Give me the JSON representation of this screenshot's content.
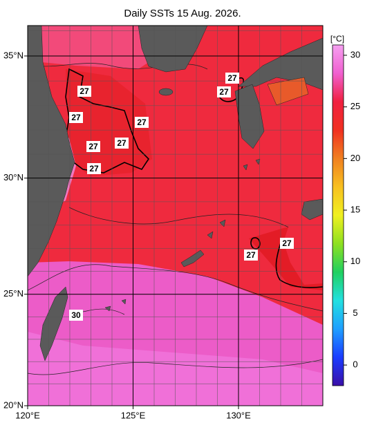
{
  "title": "Daily SSTs 15 Aug. 2026.",
  "map": {
    "xlim": [
      120,
      134
    ],
    "ylim": [
      20,
      36.2
    ],
    "xticks": [
      {
        "value": 120,
        "label": "120°E"
      },
      {
        "value": 125,
        "label": "125°E"
      },
      {
        "value": 130,
        "label": "130°E"
      }
    ],
    "yticks": [
      {
        "value": 20,
        "label": "20°N"
      },
      {
        "value": 25,
        "label": "25°N"
      },
      {
        "value": 30,
        "label": "30°N"
      },
      {
        "value": 35,
        "label": "35°N"
      }
    ],
    "contour_labels": [
      27,
      27,
      27,
      27,
      27,
      27,
      27,
      27,
      27,
      27,
      30
    ]
  },
  "colorbar": {
    "unit": "[°C]",
    "lim": [
      -2,
      31
    ],
    "ticks": [
      0,
      5,
      10,
      15,
      20,
      25,
      30
    ],
    "colors": [
      "#3a0fa8",
      "#1a3cff",
      "#1f9fff",
      "#22e0e0",
      "#20d060",
      "#8ee020",
      "#f0f020",
      "#f8c020",
      "#f08020",
      "#f03020",
      "#f02040",
      "#f060d0",
      "#f5a0f0"
    ]
  }
}
